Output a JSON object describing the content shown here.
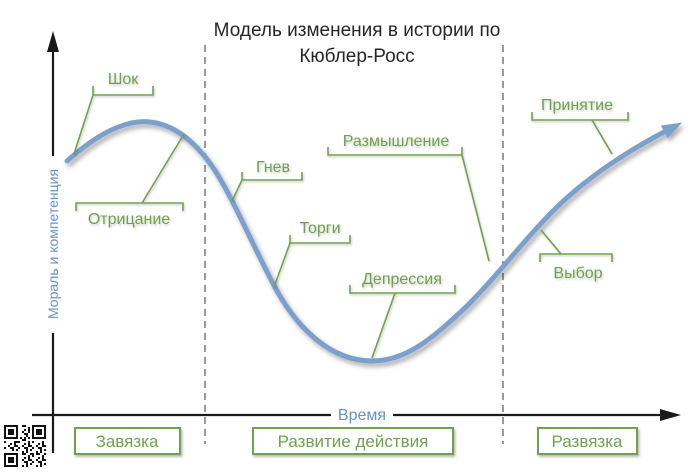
{
  "title": {
    "line1": "Модель изменения в истории по",
    "line2": "Кюблер-Росс"
  },
  "axes": {
    "y_label": "Мораль и компетенция",
    "x_label": "Время"
  },
  "curve_labels": [
    {
      "label": "Шок"
    },
    {
      "label": "Отрицание"
    },
    {
      "label": "Гнев"
    },
    {
      "label": "Торги"
    },
    {
      "label": "Размышление"
    },
    {
      "label": "Депрессия"
    },
    {
      "label": "Выбор"
    },
    {
      "label": "Принятие"
    }
  ],
  "story_phases": [
    {
      "label": "Завязка"
    },
    {
      "label": "Развитие действия"
    },
    {
      "label": "Развязка"
    }
  ],
  "colors": {
    "curve_blue": "#7ba0ce",
    "callout_green": "#6fa24d",
    "axis_text_blue": "#6593c5",
    "axis_line_black": "#1a1a1a",
    "dashed_gray": "#808080",
    "title_gray": "#262626"
  },
  "icons": {
    "qr_code": "qr-code"
  }
}
